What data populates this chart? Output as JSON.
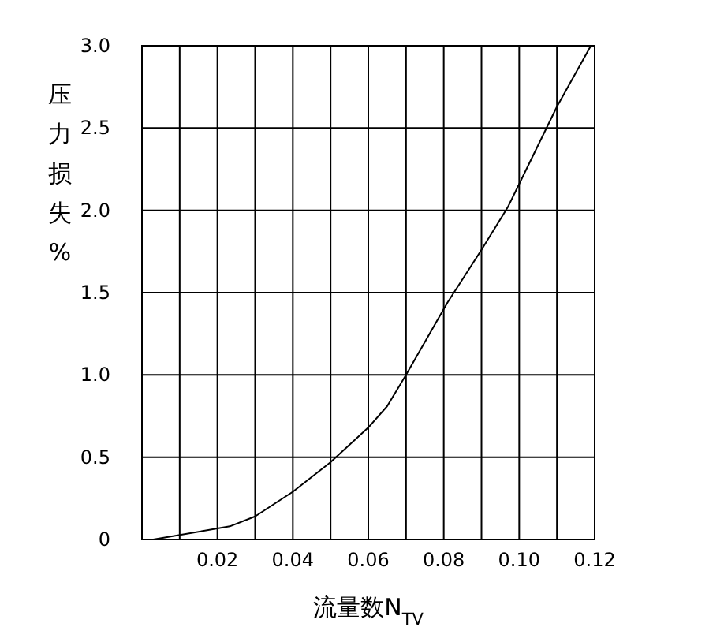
{
  "chart_data": {
    "type": "line",
    "xlabel": "流量数N$_{TV}$",
    "ylabel": "压力损失%",
    "x": [
      0.003,
      0.0233,
      0.03,
      0.04,
      0.05,
      0.06,
      0.065,
      0.07,
      0.081,
      0.09,
      0.097,
      0.1,
      0.11,
      0.119
    ],
    "series": [
      {
        "color": "#000000",
        "values": [
          0,
          0.08,
          0.14,
          0.29,
          0.47,
          0.68,
          0.81,
          1.0,
          1.44,
          1.76,
          2.02,
          2.16,
          2.63,
          3.0
        ]
      }
    ],
    "xlim": [
      0,
      0.12
    ],
    "ylim": [
      0,
      3
    ],
    "xticks": [
      {
        "value": 0.01,
        "label": null
      },
      0.02,
      {
        "value": 0.03,
        "label": null
      },
      0.04,
      {
        "value": 0.05,
        "label": null
      },
      0.06,
      {
        "value": 0.07,
        "label": null
      },
      0.08,
      {
        "value": 0.09,
        "label": null
      },
      {
        "value": 0.1,
        "label": "0.10"
      },
      {
        "value": 0.11,
        "label": null
      },
      0.12
    ],
    "yticks": [
      0,
      0.5,
      {
        "value": 1,
        "label": "1.0"
      },
      1.5,
      {
        "value": 2,
        "label": "2.0"
      },
      2.5,
      {
        "value": 3,
        "label": "3.0"
      }
    ],
    "grid": true,
    "marker": "none",
    "line_style": "solid"
  }
}
